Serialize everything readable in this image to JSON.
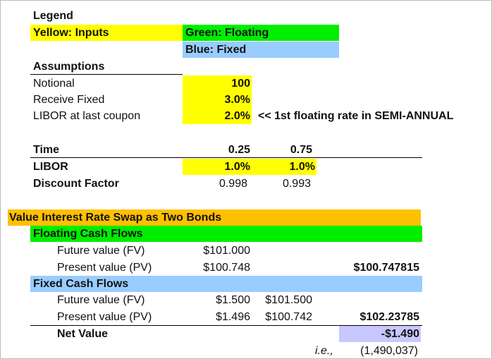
{
  "legend": {
    "title": "Legend",
    "yellow_label": "Yellow: Inputs",
    "green_label": "Green: Floating",
    "blue_label": "Blue: Fixed"
  },
  "assumptions": {
    "title": "Assumptions",
    "rows": [
      {
        "label": "Notional",
        "value": "100"
      },
      {
        "label": "Receive Fixed",
        "value": "3.0%"
      },
      {
        "label": "LIBOR at last coupon",
        "value": "2.0%",
        "note": "<< 1st floating rate in SEMI-ANNUAL"
      }
    ]
  },
  "time_table": {
    "time_label": "Time",
    "times": [
      "0.25",
      "0.75"
    ],
    "libor_label": "LIBOR",
    "libor": [
      "1.0%",
      "1.0%"
    ],
    "df_label": "Discount Factor",
    "discount_factors": [
      "0.998",
      "0.993"
    ]
  },
  "swap": {
    "title": "Value Interest Rate Swap as Two Bonds",
    "floating": {
      "title": "Floating Cash Flows",
      "fv_label": "Future value (FV)",
      "fv": "$101.000",
      "pv_label": "Present value (PV)",
      "pv": "$100.748",
      "total": "$100.747815"
    },
    "fixed": {
      "title": "Fixed Cash Flows",
      "fv_label": "Future value (FV)",
      "fv": [
        "$1.500",
        "$101.500"
      ],
      "pv_label": "Present value (PV)",
      "pv": [
        "$1.496",
        "$100.742"
      ],
      "total": "$102.23785"
    },
    "net_label": "Net Value",
    "net_value": "-$1.490",
    "ie_label": "i.e.,",
    "ie_value": "(1,490,037)"
  },
  "colors": {
    "input": "#ffff00",
    "floating": "#00ee00",
    "fixed": "#99ccff",
    "header": "#ffc000",
    "net": "#c8c8ff"
  }
}
